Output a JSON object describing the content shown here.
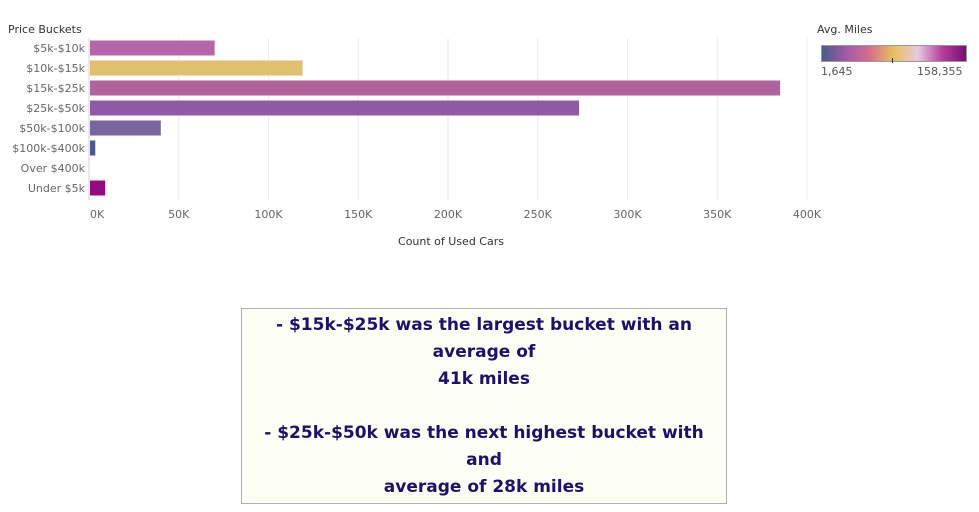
{
  "chart_data": {
    "type": "bar",
    "orientation": "horizontal",
    "categories_label": "Price Buckets",
    "categories": [
      "$5k-$10k",
      "$10k-$15k",
      "$15k-$25k",
      "$25k-$50k",
      "$50k-$100k",
      "$100k-$400k",
      "Over $400k",
      "Under $5k"
    ],
    "values": [
      70000,
      119000,
      385000,
      273000,
      40000,
      3500,
      0,
      9000
    ],
    "bar_colors": [
      "#b565a9",
      "#e0c06e",
      "#b2639b",
      "#8d5ba3",
      "#7a65a0",
      "#52588f",
      "#ffffff",
      "#930c7f"
    ],
    "xlabel": "Count of Used Cars",
    "xlim": [
      0,
      400000
    ],
    "xticks": [
      0,
      50000,
      100000,
      150000,
      200000,
      250000,
      300000,
      350000,
      400000
    ],
    "xtick_labels": [
      "0K",
      "50K",
      "100K",
      "150K",
      "200K",
      "250K",
      "300K",
      "350K",
      "400K"
    ],
    "grid": true,
    "legend": {
      "title": "Avg. Miles",
      "min_label": "1,645",
      "max_label": "158,355",
      "placement": "top-right",
      "gradient": [
        "#4a5a8c",
        "#a15aa8",
        "#d76f8c",
        "#e8c060",
        "#e6c8e0",
        "#b3409a",
        "#7a0d74"
      ]
    }
  },
  "notes": {
    "line1": "- $15k-$25k was the largest bucket with an average of",
    "line2": "41k miles",
    "line3": "- $25k-$50k was the next highest bucket with and",
    "line4": "average of 28k miles"
  }
}
